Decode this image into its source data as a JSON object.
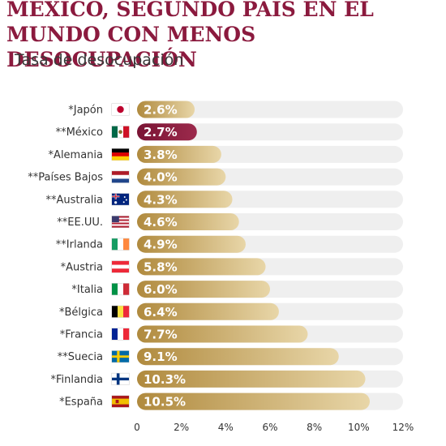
{
  "header": {
    "title_line1": "MÉXICO, SEGUNDO PAÍS EN EL",
    "title_line2": "MUNDO CON MENOS DESOCUPACIÓN",
    "subtitle": "Tasa de desocupación"
  },
  "colors": {
    "title": "#8b1a3e",
    "bar_gold_start": "#b08a3e",
    "bar_gold_end": "#e8d6a8",
    "bar_highlight": "#8b1a3e",
    "track": "#efefef"
  },
  "chart_data": {
    "type": "bar",
    "orientation": "horizontal",
    "categories": [
      "*Japón",
      "**México",
      "*Alemania",
      "**Países Bajos",
      "**Australia",
      "**EE.UU.",
      "**Irlanda",
      "*Austria",
      "*Italia",
      "*Bélgica",
      "*Francia",
      "**Suecia",
      "*Finlandia",
      "*España"
    ],
    "values": [
      2.6,
      2.7,
      3.8,
      4.0,
      4.3,
      4.6,
      4.9,
      5.8,
      6.0,
      6.4,
      7.7,
      9.1,
      10.3,
      10.5
    ],
    "value_labels": [
      "2.6%",
      "2.7%",
      "3.8%",
      "4.0%",
      "4.3%",
      "4.6%",
      "4.9%",
      "5.8%",
      "6.0%",
      "6.4%",
      "7.7%",
      "9.1%",
      "10.3%",
      "10.5%"
    ],
    "flags": [
      "japan",
      "mexico",
      "germany",
      "netherlands",
      "australia",
      "usa",
      "ireland",
      "austria",
      "italy",
      "belgium",
      "france",
      "sweden",
      "finland",
      "spain"
    ],
    "highlight": "**México",
    "xlim": [
      0,
      12
    ],
    "xticks": [
      0,
      2,
      4,
      6,
      8,
      10,
      12
    ],
    "xtick_labels": [
      "0",
      "2%",
      "4%",
      "6%",
      "8%",
      "10%",
      "12%"
    ],
    "grid": false
  }
}
